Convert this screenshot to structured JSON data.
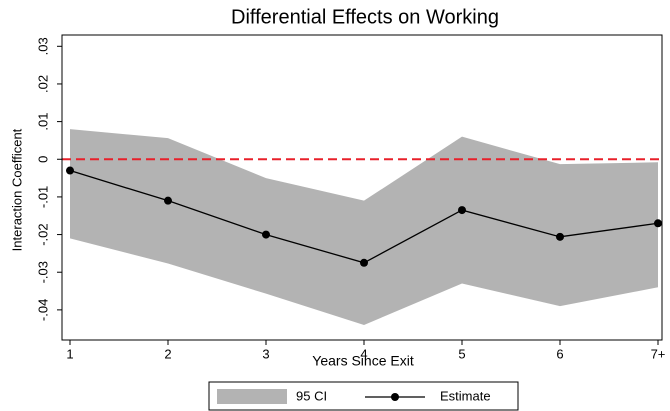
{
  "chart_data": {
    "type": "band_line",
    "title": "Differential Effects on Working",
    "x_label": "Years Since Exit",
    "y_label": "Interaction Coefficent",
    "categories": [
      "1",
      "2",
      "3",
      "4",
      "5",
      "6",
      "7+"
    ],
    "series": [
      {
        "name": "95 CI",
        "color": "#b3b3b3",
        "upper": [
          0.008,
          0.0056,
          -0.005,
          -0.011,
          0.006,
          -0.0013,
          -0.0008
        ],
        "lower": [
          -0.021,
          -0.0277,
          -0.0357,
          -0.044,
          -0.033,
          -0.039,
          -0.034
        ]
      },
      {
        "name": "Estimate",
        "color": "#000000",
        "values": [
          -0.003,
          -0.011,
          -0.02,
          -0.0275,
          -0.0135,
          -0.0206,
          -0.017
        ]
      }
    ],
    "reference_line": {
      "value": 0,
      "color": "#e8202a"
    },
    "ylim": [
      -0.048,
      0.033
    ],
    "yticks": [
      {
        "value": 0.03,
        "label": ".03"
      },
      {
        "value": 0.02,
        "label": ".02"
      },
      {
        "value": 0.01,
        "label": ".01"
      },
      0,
      {
        "value": -0.01,
        "label": "-.01"
      },
      {
        "value": -0.02,
        "label": "-.02"
      },
      {
        "value": -0.03,
        "label": "-.03"
      },
      {
        "value": -0.04,
        "label": "-.04"
      }
    ],
    "grid": false,
    "legend": "bottom"
  }
}
